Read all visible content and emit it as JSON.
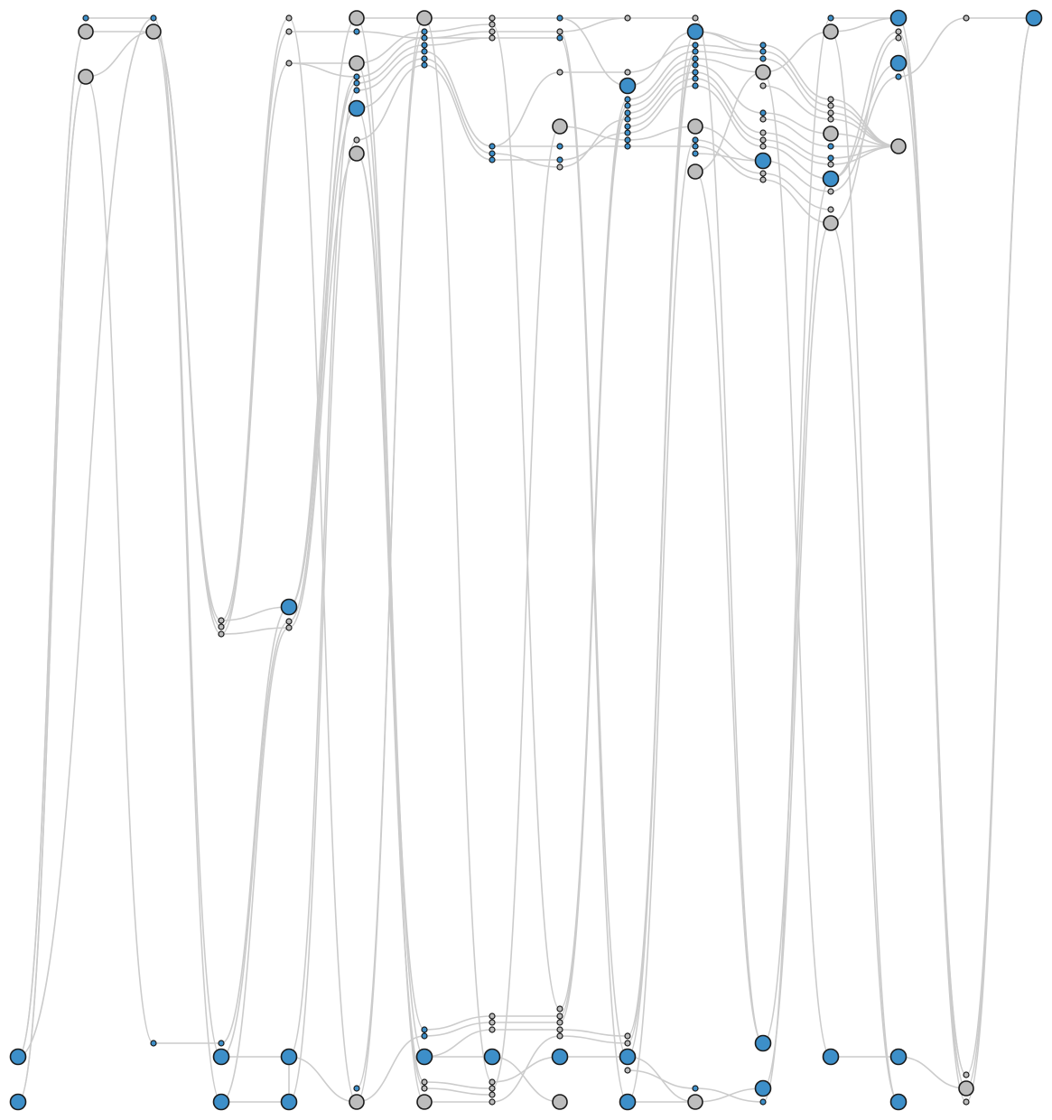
{
  "diagram": {
    "type": "layered-graph",
    "colors": {
      "background": "#ffffff",
      "edge": "#cccccc",
      "node_stroke": "#1a1a1a",
      "node_blue": "#3d8fc9",
      "node_gray": "#bdbdbd"
    },
    "node_kinds": [
      "large-blue",
      "large-gray",
      "small-blue",
      "small-gray"
    ],
    "node_count": 174,
    "edge_count": 187
  }
}
